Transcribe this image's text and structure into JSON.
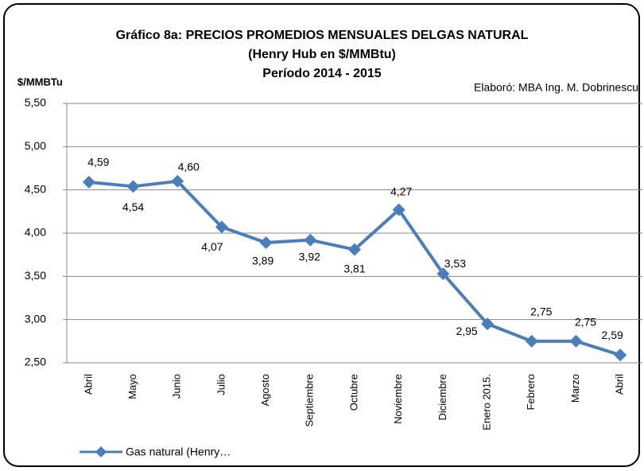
{
  "chart_data": {
    "type": "line",
    "title": [
      "Gráfico 8a: PRECIOS PROMEDIOS MENSUALES DELGAS NATURAL",
      "(Henry Hub en $/MMBtu)",
      "Período 2014 - 2015"
    ],
    "y_label": "$/MMBTu",
    "annotation": "Elaboró: MBA Ing. M. Dobrinescu",
    "categories": [
      "Abril",
      "Mayo",
      "Junio",
      "Julio",
      "Agosto",
      "Septiembre",
      "Octubre",
      "Noviembre",
      "Diciembre",
      "Enero 2015.",
      "Febrero",
      "Marzo",
      "Abril"
    ],
    "series": [
      {
        "name": "Gas natural (Henry…",
        "color": "#4a7ebb",
        "values": [
          4.59,
          4.54,
          4.6,
          4.07,
          3.89,
          3.92,
          3.81,
          4.27,
          3.53,
          2.95,
          2.75,
          2.75,
          2.59
        ],
        "value_labels": [
          "4,59",
          "4,54",
          "4,60",
          "4,07",
          "3,89",
          "3,92",
          "3,81",
          "4,27",
          "3,53",
          "2,95",
          "2,75",
          "2,75",
          "2,59"
        ]
      }
    ],
    "ylim": [
      2.5,
      5.5
    ],
    "yticks": [
      {
        "value": 2.5,
        "label": "2,50"
      },
      {
        "value": 3.0,
        "label": "3,00"
      },
      {
        "value": 3.5,
        "label": "3,50"
      },
      {
        "value": 4.0,
        "label": "4,00"
      },
      {
        "value": 4.5,
        "label": "4,50"
      },
      {
        "value": 5.0,
        "label": "5,00"
      },
      {
        "value": 5.5,
        "label": "5,50"
      }
    ],
    "grid": true,
    "legend": "bottom-left"
  }
}
